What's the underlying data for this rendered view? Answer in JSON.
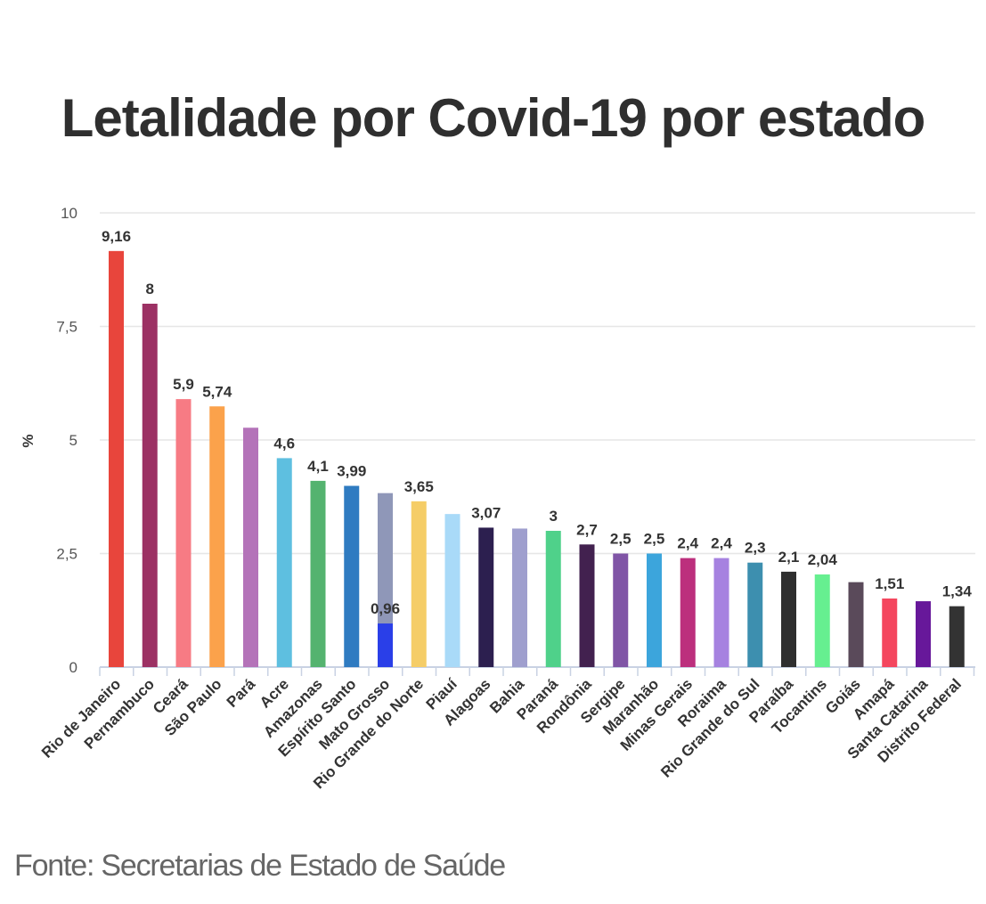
{
  "chart_data": {
    "type": "bar",
    "title": "Letalidade por Covid-19 por estado",
    "ylabel": "%",
    "xlabel": "",
    "ylim": [
      0,
      10
    ],
    "yticks": [
      "0",
      "2,5",
      "5",
      "7,5",
      "10"
    ],
    "ytick_values": [
      0,
      2.5,
      5,
      7.5,
      10
    ],
    "grid": true,
    "legend": "none",
    "categories": [
      "Rio de Janeiro",
      "Pernambuco",
      "Ceará",
      "São Paulo",
      "Pará",
      "Acre",
      "Amazonas",
      "Espírito Santo",
      "Mato Grosso",
      "Rio Grande do Norte",
      "Piauí",
      "Alagoas",
      "Bahia",
      "Paraná",
      "Rondônia",
      "Sergipe",
      "Maranhão",
      "Minas Gerais",
      "Roraima",
      "Rio Grande do Sul",
      "Paraíba",
      "Tocantins",
      "Goiás",
      "Amapá",
      "Santa Catarina",
      "Distrito Federal"
    ],
    "values": [
      9.16,
      8,
      5.9,
      5.74,
      5.27,
      4.6,
      4.1,
      3.99,
      3.83,
      3.65,
      3.37,
      3.07,
      3.05,
      3,
      2.7,
      2.5,
      2.5,
      2.4,
      2.4,
      2.3,
      2.1,
      2.04,
      1.87,
      1.51,
      1.45,
      1.34
    ],
    "value_labels": [
      "9,16",
      "8",
      "5,9",
      "5,74",
      "",
      "4,6",
      "4,1",
      "3,99",
      "",
      "3,65",
      "",
      "3,07",
      "",
      "3",
      "2,7",
      "2,5",
      "2,5",
      "2,4",
      "2,4",
      "2,3",
      "2,1",
      "2,04",
      "",
      "1,51",
      "",
      "1,34"
    ],
    "colors": [
      "#e8453c",
      "#9c3164",
      "#f77b84",
      "#fba24b",
      "#b473b9",
      "#5ebfe0",
      "#54b36f",
      "#2f7bc1",
      "#8f97b8",
      "#f5cd67",
      "#a9daf8",
      "#2c1f4f",
      "#9f9fce",
      "#4fd18a",
      "#42214f",
      "#8055a6",
      "#3ca5dc",
      "#bc2f7d",
      "#a682e0",
      "#3d8faf",
      "#2f2f2f",
      "#66ef90",
      "#5a4a5a",
      "#f4465e",
      "#67189a",
      "#333333"
    ],
    "overlay": {
      "category": "Mato Grosso",
      "value": 0.96,
      "label": "0,96",
      "color": "#2a3fe8"
    }
  },
  "source": "Fonte: Secretarias de Estado de Saúde"
}
